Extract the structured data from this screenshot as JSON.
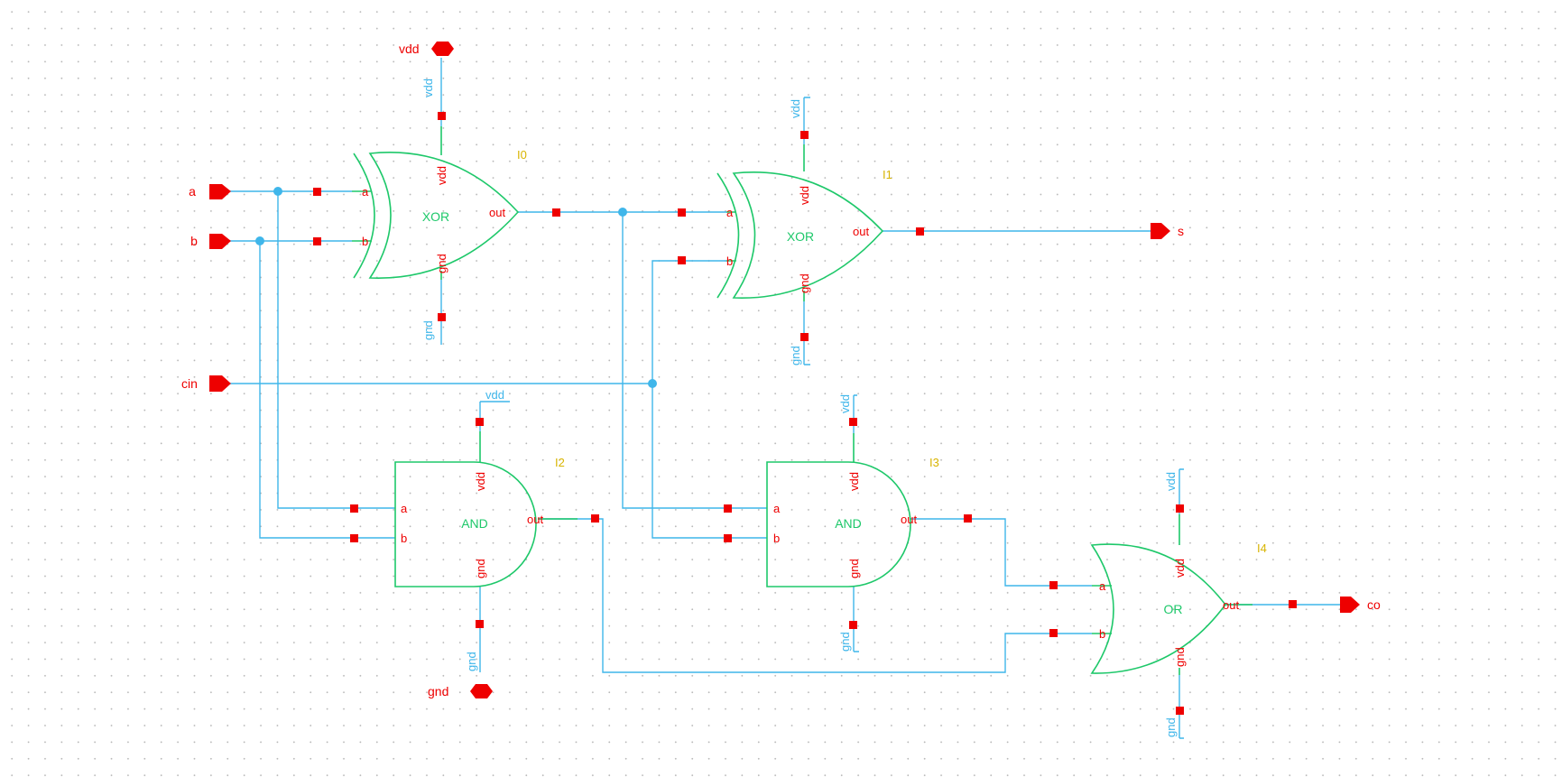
{
  "ports": {
    "a": "a",
    "b": "b",
    "cin": "cin",
    "s": "s",
    "co": "co",
    "vdd": "vdd",
    "gnd": "gnd"
  },
  "instances": [
    {
      "id": "I0",
      "type": "XOR",
      "pins": [
        "a",
        "b",
        "out",
        "vdd",
        "gnd"
      ]
    },
    {
      "id": "I1",
      "type": "XOR",
      "pins": [
        "a",
        "b",
        "out",
        "vdd",
        "gnd"
      ]
    },
    {
      "id": "I2",
      "type": "AND",
      "pins": [
        "a",
        "b",
        "out",
        "vdd",
        "gnd"
      ]
    },
    {
      "id": "I3",
      "type": "AND",
      "pins": [
        "a",
        "b",
        "out",
        "vdd",
        "gnd"
      ]
    },
    {
      "id": "I4",
      "type": "OR",
      "pins": [
        "a",
        "b",
        "out",
        "vdd",
        "gnd"
      ]
    }
  ],
  "nets": {
    "vdd": "vdd",
    "gnd": "gnd"
  },
  "colors": {
    "wire": "#3fb6ea",
    "gate": "#1ec86a",
    "pin": "#ee0000",
    "instance_label": "#d8b400"
  }
}
